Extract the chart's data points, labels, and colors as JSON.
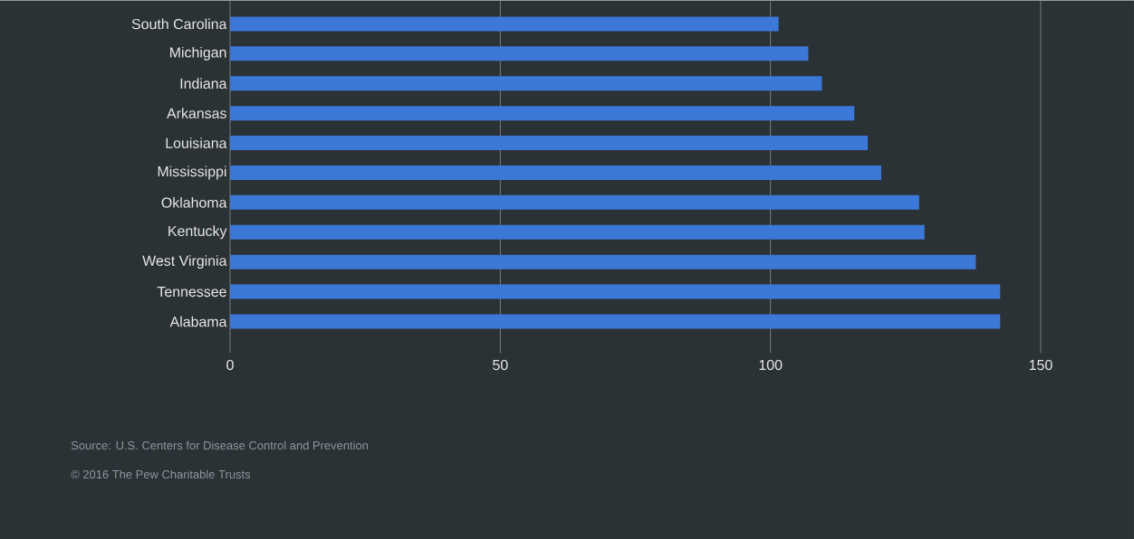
{
  "chart_data": {
    "type": "bar",
    "orientation": "horizontal",
    "categories": [
      "South Carolina",
      "Michigan",
      "Indiana",
      "Arkansas",
      "Louisiana",
      "Mississippi",
      "Oklahoma",
      "Kentucky",
      "West Virginia",
      "Tennessee",
      "Alabama"
    ],
    "values": [
      101.5,
      107,
      109.5,
      115.5,
      118,
      120.5,
      127.5,
      128.5,
      138,
      142.5,
      142.5
    ],
    "color": "#3b78d8",
    "xlim": [
      0,
      150
    ],
    "xticks": [
      0,
      50,
      100,
      150
    ],
    "grid": "x",
    "annotations": [
      "Source: U.S. Centers for Disease Control and Prevention",
      "© 2016 The Pew Charitable Trusts"
    ]
  }
}
